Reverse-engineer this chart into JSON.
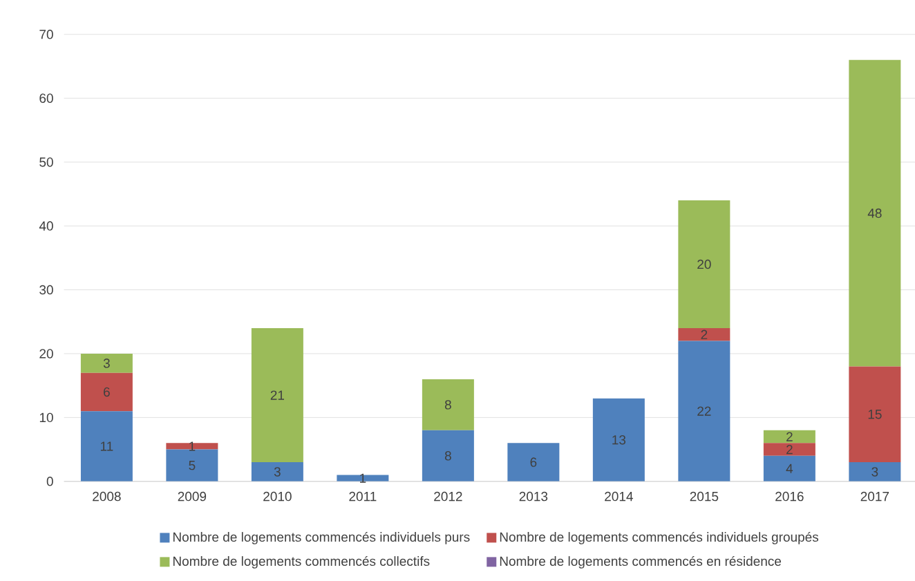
{
  "chart_data": {
    "type": "bar",
    "stacked": true,
    "categories": [
      "2008",
      "2009",
      "2010",
      "2011",
      "2012",
      "2013",
      "2014",
      "2015",
      "2016",
      "2017"
    ],
    "series": [
      {
        "name": "Nombre de logements commencés individuels purs",
        "color": "#4f81bd",
        "values": [
          11,
          5,
          3,
          1,
          8,
          6,
          13,
          22,
          4,
          3
        ]
      },
      {
        "name": "Nombre de logements commencés individuels groupés",
        "color": "#c0504d",
        "values": [
          6,
          1,
          null,
          null,
          null,
          null,
          null,
          2,
          2,
          15
        ]
      },
      {
        "name": "Nombre de logements commencés collectifs",
        "color": "#9bbb59",
        "values": [
          3,
          null,
          21,
          null,
          8,
          null,
          null,
          20,
          2,
          48
        ]
      },
      {
        "name": "Nombre de logements commencés en résidence",
        "color": "#8064a2",
        "values": [
          null,
          null,
          null,
          null,
          null,
          null,
          null,
          null,
          null,
          null
        ]
      }
    ],
    "ylim": [
      0,
      70
    ],
    "yticks": [
      0,
      10,
      20,
      30,
      40,
      50,
      60,
      70
    ],
    "grid": "y",
    "legend": "bottom",
    "data_labels": true
  }
}
